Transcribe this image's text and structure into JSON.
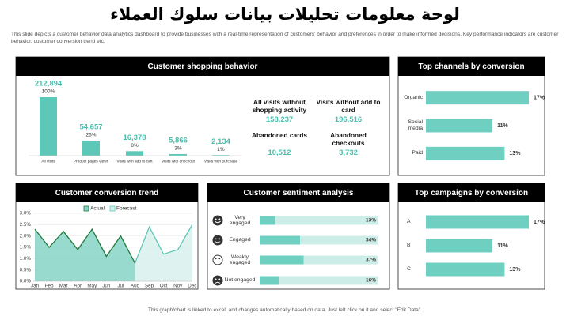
{
  "title": "لوحة معلومات تحليلات بيانات سلوك العملاء",
  "description": "This slide depicts a customer behavior data analytics dashboard to provide businesses with a real-time representation of customers' behavior and preferences in order to make informed decisions. Key performance indicators are customer behavior, customer conversion trend etc.",
  "footer": "This graph/chart is linked to excel, and changes automatically based on data. Just left click on it and select \"Edit Data\".",
  "kpis": [
    {
      "label": "All visits without shopping activity",
      "value": "158,237"
    },
    {
      "label": "Visits without add to card",
      "value": "196,516"
    },
    {
      "label": "Abandoned cards",
      "value": "10,512"
    },
    {
      "label": "Abandoned checkouts",
      "value": "3,732"
    }
  ],
  "chart_data": [
    {
      "type": "bar",
      "title": "Customer shopping behavior",
      "categories": [
        "All visits",
        "Product pages views",
        "Visits with add to cart",
        "Visits with checkout",
        "Visits with purchase"
      ],
      "values": [
        212894,
        54657,
        16378,
        5866,
        2134
      ],
      "value_labels": [
        "212,894",
        "54,657",
        "16,378",
        "5,866",
        "2,134"
      ],
      "share_labels": [
        "100%",
        "26%",
        "8%",
        "3%",
        "1%"
      ],
      "color": "#5ec8b8"
    },
    {
      "type": "hbar",
      "title": "Top channels by conversion",
      "categories": [
        "Organic",
        "Social media",
        "Paid"
      ],
      "values": [
        17,
        11,
        13
      ],
      "value_labels": [
        "17%",
        "11%",
        "13%"
      ],
      "color": "#6fcfc0"
    },
    {
      "type": "line",
      "title": "Customer conversion trend",
      "categories": [
        "Jan",
        "Feb",
        "Mar",
        "Apr",
        "May",
        "Jun",
        "Jul",
        "Aug",
        "Sep",
        "Oct",
        "Nov",
        "Dec"
      ],
      "ylim": [
        0,
        3
      ],
      "yticks": [
        {
          "value": 0,
          "label": "0.0%"
        },
        {
          "value": 0.5,
          "label": "0.5%"
        },
        {
          "value": 1,
          "label": "1.0%"
        },
        {
          "value": 1.5,
          "label": "1.5%"
        },
        {
          "value": 2,
          "label": "2.0%"
        },
        {
          "value": 2.5,
          "label": "2.5%"
        },
        {
          "value": 3,
          "label": "3.0%"
        }
      ],
      "series": [
        {
          "name": "Actual",
          "color": "#1f7a3c",
          "fill": "#86d3c6",
          "values": [
            2.3,
            1.5,
            2.2,
            1.4,
            2.3,
            1.1,
            2.0,
            0.8,
            null,
            null,
            null,
            null
          ]
        },
        {
          "name": "Forecast",
          "color": "#5ec8b8",
          "fill": "#d8f1ed",
          "values": [
            null,
            null,
            null,
            null,
            null,
            null,
            null,
            0.8,
            2.4,
            1.2,
            1.4,
            2.5
          ]
        }
      ],
      "legend": "top"
    },
    {
      "type": "progress",
      "title": "Customer sentiment analysis",
      "categories": [
        "Very engaged",
        "Engaged",
        "Weakly engaged",
        "Not engaged"
      ],
      "values": [
        13,
        34,
        37,
        16
      ],
      "value_labels": [
        "13%",
        "34%",
        "37%",
        "16%"
      ],
      "xlim": [
        0,
        100
      ],
      "color": "#6fcfc0",
      "track_color": "#cdeee8"
    },
    {
      "type": "hbar",
      "title": "Top campaigns by conversion",
      "categories": [
        "A",
        "B",
        "C"
      ],
      "values": [
        17,
        11,
        13
      ],
      "value_labels": [
        "17%",
        "11%",
        "13%"
      ],
      "color": "#6fcfc0"
    }
  ]
}
